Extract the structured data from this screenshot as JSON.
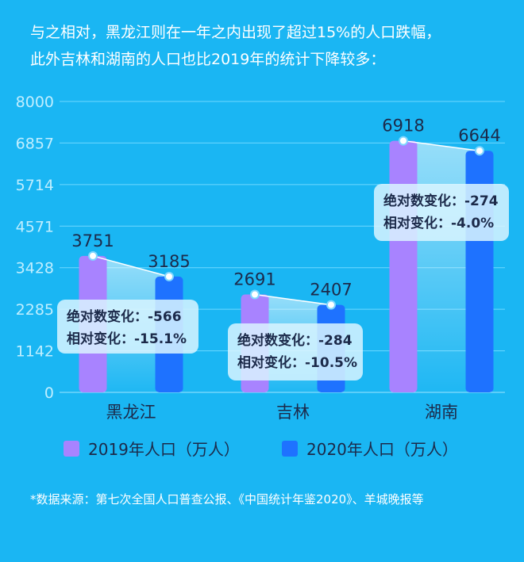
{
  "intro": {
    "line1": "与之相对，黑龙江则在一年之内出现了超过15%的人口跌幅，",
    "line2": "此外吉林和湖南的人口也比2019年的统计下降较多："
  },
  "source": "*数据来源：第七次全国人口普查公报、《中国统计年鉴2020》、羊城晚报等",
  "colors": {
    "background": "#1ab6f3",
    "series_2019": "#a883ff",
    "series_2020": "#1e72ff",
    "grid": "#6ed8ff",
    "callout": "#d9f4ff"
  },
  "chart_data": {
    "type": "bar",
    "categories": [
      "黑龙江",
      "吉林",
      "湖南"
    ],
    "series": [
      {
        "name": "2019年人口（万人）",
        "values": [
          3751,
          2691,
          6918
        ]
      },
      {
        "name": "2020年人口（万人）",
        "values": [
          3185,
          2407,
          6644
        ]
      }
    ],
    "y_ticks": [
      0,
      1142,
      2285,
      3428,
      4571,
      5714,
      6857,
      8000
    ],
    "ylim": [
      0,
      8000
    ],
    "grid": true,
    "legend_position": "bottom",
    "annotations": [
      {
        "absolute": "绝对数变化：-566",
        "relative": "相对变化：-15.1%"
      },
      {
        "absolute": "绝对数变化：-284",
        "relative": "相对变化：-10.5%"
      },
      {
        "absolute": "绝对数变化：-274",
        "relative": "相对变化：-4.0%"
      }
    ]
  }
}
